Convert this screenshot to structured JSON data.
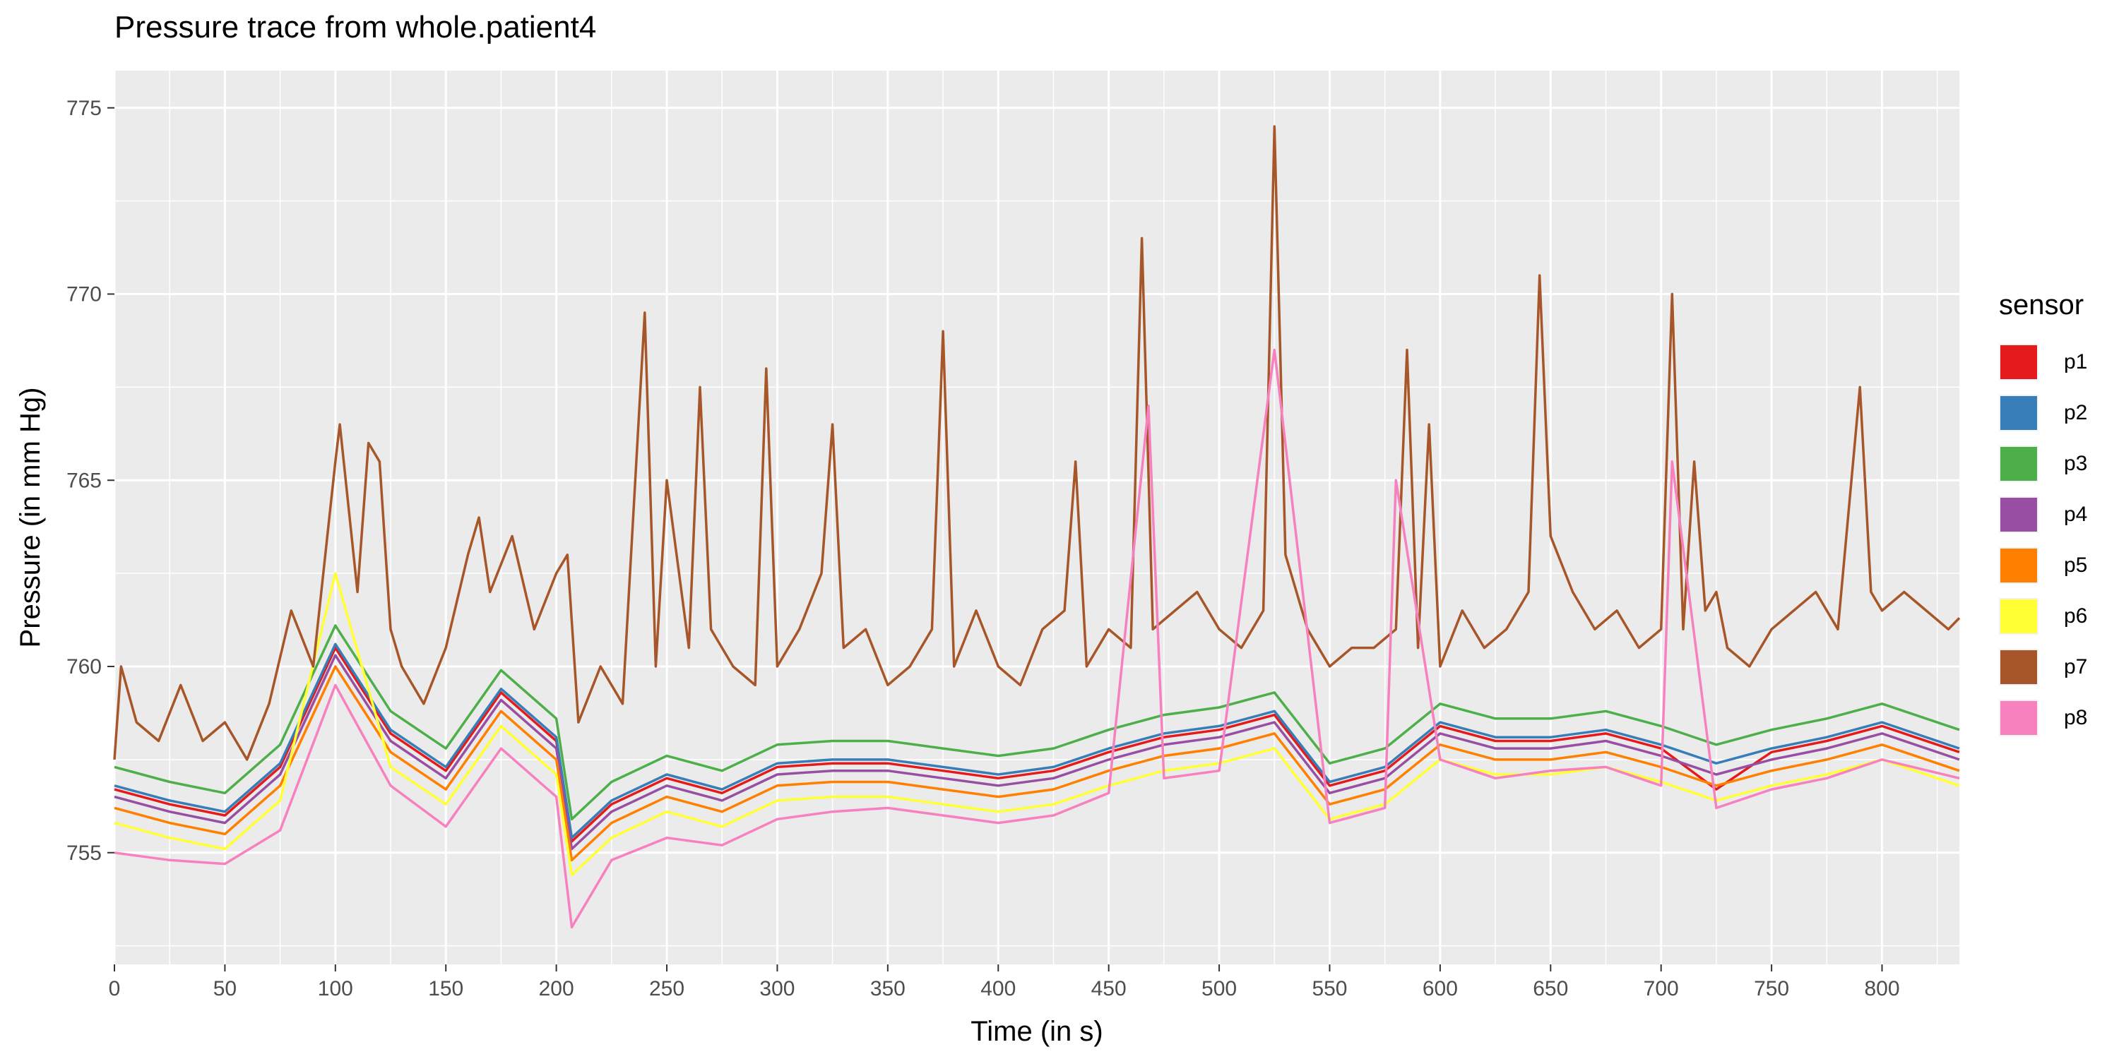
{
  "chart_data": {
    "type": "line",
    "title": "Pressure trace from whole.patient4",
    "xlabel": "Time (in s)",
    "ylabel": "Pressure (in mm Hg)",
    "xlim": [
      0,
      835
    ],
    "ylim": [
      752,
      776
    ],
    "x_ticks": [
      0,
      50,
      100,
      150,
      200,
      250,
      300,
      350,
      400,
      450,
      500,
      550,
      600,
      650,
      700,
      750,
      800
    ],
    "y_ticks": [
      755,
      760,
      765,
      770,
      775
    ],
    "grid": true,
    "legend_title": "sensor",
    "legend_position": "right",
    "series": [
      {
        "name": "p1",
        "color": "#E41A1C",
        "x": [
          0,
          25,
          50,
          75,
          100,
          125,
          150,
          175,
          200,
          207,
          225,
          250,
          275,
          300,
          325,
          350,
          375,
          400,
          425,
          450,
          475,
          500,
          525,
          550,
          575,
          600,
          625,
          650,
          675,
          700,
          725,
          750,
          775,
          800,
          835
        ],
        "y": [
          756.7,
          756.3,
          756.0,
          757.3,
          760.5,
          758.2,
          757.2,
          759.3,
          758.0,
          755.3,
          756.3,
          757.0,
          756.6,
          757.3,
          757.4,
          757.4,
          757.2,
          757.0,
          757.2,
          757.7,
          758.1,
          758.3,
          758.7,
          756.8,
          757.2,
          758.4,
          758.0,
          758.0,
          758.2,
          757.8,
          756.7,
          757.7,
          758.0,
          758.4,
          757.7
        ]
      },
      {
        "name": "p2",
        "color": "#377EB8",
        "x": [
          0,
          25,
          50,
          75,
          100,
          125,
          150,
          175,
          200,
          207,
          225,
          250,
          275,
          300,
          325,
          350,
          375,
          400,
          425,
          450,
          475,
          500,
          525,
          550,
          575,
          600,
          625,
          650,
          675,
          700,
          725,
          750,
          775,
          800,
          835
        ],
        "y": [
          756.8,
          756.4,
          756.1,
          757.4,
          760.6,
          758.3,
          757.3,
          759.4,
          758.1,
          755.4,
          756.4,
          757.1,
          756.7,
          757.4,
          757.5,
          757.5,
          757.3,
          757.1,
          757.3,
          757.8,
          758.2,
          758.4,
          758.8,
          756.9,
          757.3,
          758.5,
          758.1,
          758.1,
          758.3,
          757.9,
          757.4,
          757.8,
          758.1,
          758.5,
          757.8
        ]
      },
      {
        "name": "p3",
        "color": "#4DAF4A",
        "x": [
          0,
          25,
          50,
          75,
          100,
          125,
          150,
          175,
          200,
          207,
          225,
          250,
          275,
          300,
          325,
          350,
          375,
          400,
          425,
          450,
          475,
          500,
          525,
          550,
          575,
          600,
          625,
          650,
          675,
          700,
          725,
          750,
          775,
          800,
          835
        ],
        "y": [
          757.3,
          756.9,
          756.6,
          757.9,
          761.1,
          758.8,
          757.8,
          759.9,
          758.6,
          755.9,
          756.9,
          757.6,
          757.2,
          757.9,
          758.0,
          758.0,
          757.8,
          757.6,
          757.8,
          758.3,
          758.7,
          758.9,
          759.3,
          757.4,
          757.8,
          759.0,
          758.6,
          758.6,
          758.8,
          758.4,
          757.9,
          758.3,
          758.6,
          759.0,
          758.3
        ]
      },
      {
        "name": "p4",
        "color": "#984EA3",
        "x": [
          0,
          25,
          50,
          75,
          100,
          125,
          150,
          175,
          200,
          207,
          225,
          250,
          275,
          300,
          325,
          350,
          375,
          400,
          425,
          450,
          475,
          500,
          525,
          550,
          575,
          600,
          625,
          650,
          675,
          700,
          725,
          750,
          775,
          800,
          835
        ],
        "y": [
          756.5,
          756.1,
          755.8,
          757.1,
          760.3,
          758.0,
          757.0,
          759.1,
          757.8,
          755.1,
          756.1,
          756.8,
          756.4,
          757.1,
          757.2,
          757.2,
          757.0,
          756.8,
          757.0,
          757.5,
          757.9,
          758.1,
          758.5,
          756.6,
          757.0,
          758.2,
          757.8,
          757.8,
          758.0,
          757.6,
          757.1,
          757.5,
          757.8,
          758.2,
          757.5
        ]
      },
      {
        "name": "p5",
        "color": "#FF7F00",
        "x": [
          0,
          25,
          50,
          75,
          100,
          125,
          150,
          175,
          200,
          207,
          225,
          250,
          275,
          300,
          325,
          350,
          375,
          400,
          425,
          450,
          475,
          500,
          525,
          550,
          575,
          600,
          625,
          650,
          675,
          700,
          725,
          750,
          775,
          800,
          835
        ],
        "y": [
          756.2,
          755.8,
          755.5,
          756.8,
          760.0,
          757.7,
          756.7,
          758.8,
          757.5,
          754.8,
          755.8,
          756.5,
          756.1,
          756.8,
          756.9,
          756.9,
          756.7,
          756.5,
          756.7,
          757.2,
          757.6,
          757.8,
          758.2,
          756.3,
          756.7,
          757.9,
          757.5,
          757.5,
          757.7,
          757.3,
          756.8,
          757.2,
          757.5,
          757.9,
          757.2
        ]
      },
      {
        "name": "p6",
        "color": "#FFFF33",
        "x": [
          0,
          25,
          50,
          75,
          100,
          125,
          150,
          175,
          200,
          207,
          225,
          250,
          275,
          300,
          325,
          350,
          375,
          400,
          425,
          450,
          475,
          500,
          525,
          550,
          575,
          600,
          625,
          650,
          675,
          700,
          725,
          750,
          775,
          800,
          835
        ],
        "y": [
          755.8,
          755.4,
          755.1,
          756.4,
          762.5,
          757.3,
          756.3,
          758.4,
          757.1,
          754.4,
          755.4,
          756.1,
          755.7,
          756.4,
          756.5,
          756.5,
          756.3,
          756.1,
          756.3,
          756.8,
          757.2,
          757.4,
          757.8,
          755.9,
          756.3,
          757.5,
          757.1,
          757.1,
          757.3,
          756.9,
          756.4,
          756.8,
          757.1,
          757.5,
          756.8
        ]
      },
      {
        "name": "p7",
        "color": "#A65628",
        "x": [
          0,
          3,
          10,
          20,
          30,
          40,
          50,
          60,
          70,
          80,
          90,
          100,
          102,
          110,
          115,
          120,
          125,
          130,
          140,
          150,
          160,
          165,
          170,
          180,
          190,
          200,
          205,
          210,
          220,
          230,
          240,
          245,
          250,
          260,
          265,
          270,
          280,
          290,
          295,
          300,
          310,
          320,
          325,
          330,
          340,
          350,
          360,
          370,
          375,
          380,
          390,
          400,
          410,
          420,
          430,
          435,
          440,
          450,
          460,
          465,
          470,
          480,
          490,
          500,
          510,
          520,
          525,
          530,
          540,
          550,
          560,
          570,
          580,
          585,
          590,
          595,
          600,
          610,
          620,
          630,
          640,
          645,
          650,
          660,
          670,
          680,
          690,
          700,
          705,
          710,
          715,
          720,
          725,
          730,
          740,
          750,
          760,
          770,
          780,
          790,
          795,
          800,
          810,
          820,
          830,
          835
        ],
        "y": [
          757.5,
          760.0,
          758.5,
          758.0,
          759.5,
          758.0,
          758.5,
          757.5,
          759.0,
          761.5,
          760.0,
          765.5,
          766.5,
          762.0,
          766.0,
          765.5,
          761.0,
          760.0,
          759.0,
          760.5,
          763.0,
          764.0,
          762.0,
          763.5,
          761.0,
          762.5,
          763.0,
          758.5,
          760.0,
          759.0,
          769.5,
          760.0,
          765.0,
          760.5,
          767.5,
          761.0,
          760.0,
          759.5,
          768.0,
          760.0,
          761.0,
          762.5,
          766.5,
          760.5,
          761.0,
          759.5,
          760.0,
          761.0,
          769.0,
          760.0,
          761.5,
          760.0,
          759.5,
          761.0,
          761.5,
          765.5,
          760.0,
          761.0,
          760.5,
          771.5,
          761.0,
          761.5,
          762.0,
          761.0,
          760.5,
          761.5,
          774.5,
          763.0,
          761.0,
          760.0,
          760.5,
          760.5,
          761.0,
          768.5,
          760.5,
          766.5,
          760.0,
          761.5,
          760.5,
          761.0,
          762.0,
          770.5,
          763.5,
          762.0,
          761.0,
          761.5,
          760.5,
          761.0,
          770.0,
          761.0,
          765.5,
          761.5,
          762.0,
          760.5,
          760.0,
          761.0,
          761.5,
          762.0,
          761.0,
          767.5,
          762.0,
          761.5,
          762.0,
          761.5,
          761.0,
          761.3
        ]
      },
      {
        "name": "p8",
        "color": "#F781BF",
        "x": [
          0,
          25,
          50,
          75,
          100,
          125,
          150,
          175,
          200,
          207,
          225,
          250,
          275,
          300,
          325,
          350,
          375,
          400,
          425,
          450,
          468,
          475,
          500,
          525,
          550,
          575,
          580,
          600,
          625,
          650,
          675,
          700,
          705,
          725,
          750,
          775,
          800,
          835
        ],
        "y": [
          755.0,
          754.8,
          754.7,
          755.6,
          759.5,
          756.8,
          755.7,
          757.8,
          756.5,
          753.0,
          754.8,
          755.4,
          755.2,
          755.9,
          756.1,
          756.2,
          756.0,
          755.8,
          756.0,
          756.6,
          767.0,
          757.0,
          757.2,
          768.5,
          755.8,
          756.2,
          765.0,
          757.5,
          757.0,
          757.2,
          757.3,
          756.8,
          765.5,
          756.2,
          756.7,
          757.0,
          757.5,
          757.0
        ]
      }
    ]
  }
}
